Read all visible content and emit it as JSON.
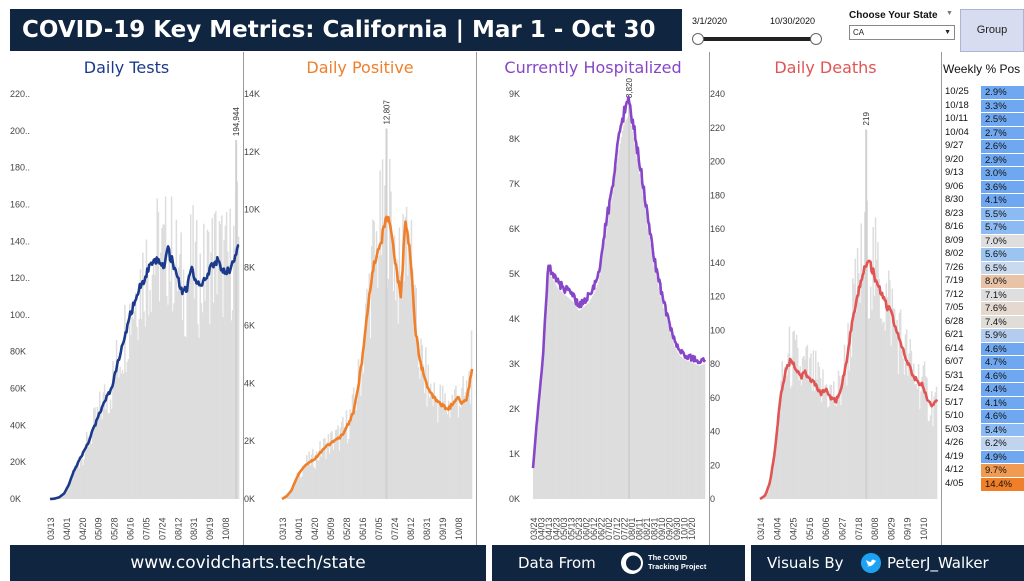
{
  "header": {
    "title": "COVID-19 Key Metrics: California  |  Mar 1  - Oct 30",
    "date_start": "3/1/2020",
    "date_end": "10/30/2020",
    "state_label": "Choose Your State",
    "state_value": "CA",
    "group_button": "Group"
  },
  "colors": {
    "navy": "#0f2540",
    "tests": "#1c3a8c",
    "positive": "#f07f2a",
    "hospitalized": "#8746c8",
    "deaths": "#e05454",
    "bars": "#dddddd"
  },
  "chart_data": [
    {
      "type": "line",
      "title": "Daily Tests",
      "color": "#1c3a8c",
      "y_ticks": [
        "0K",
        "20K",
        "40K",
        "60K",
        "80K",
        "100..",
        "120..",
        "140..",
        "160..",
        "180..",
        "200..",
        "220.."
      ],
      "y_max": 220000,
      "x_ticks": [
        "03/13",
        "04/01",
        "04/20",
        "05/09",
        "05/28",
        "06/16",
        "07/05",
        "07/24",
        "08/12",
        "08/31",
        "09/19",
        "10/08"
      ],
      "annotation": "194,944",
      "peak_value": 194944,
      "rolling_avg": [
        0,
        200,
        1000,
        3000,
        8000,
        15000,
        20000,
        25000,
        30000,
        37000,
        43000,
        50000,
        55000,
        60000,
        70000,
        80000,
        90000,
        100000,
        108000,
        115000,
        120000,
        125000,
        128000,
        130000,
        126000,
        135000,
        128000,
        120000,
        112000,
        115000,
        125000,
        118000,
        115000,
        120000,
        125000,
        130000,
        128000,
        122000,
        125000,
        130000,
        137000
      ]
    },
    {
      "type": "line",
      "title": "Daily Positive",
      "color": "#f07f2a",
      "y_ticks": [
        "0K",
        "2K",
        "4K",
        "6K",
        "8K",
        "10K",
        "12K",
        "14K"
      ],
      "y_max": 14000,
      "x_ticks": [
        "03/13",
        "04/01",
        "04/20",
        "05/09",
        "05/28",
        "06/16",
        "07/05",
        "07/24",
        "08/12",
        "08/31",
        "09/19",
        "10/08"
      ],
      "annotation": "12,807",
      "peak_value": 12807,
      "rolling_avg": [
        0,
        100,
        300,
        700,
        1000,
        1200,
        1300,
        1400,
        1600,
        1800,
        1900,
        2000,
        2100,
        2300,
        2600,
        3000,
        3800,
        5000,
        6500,
        7800,
        8500,
        9000,
        9800,
        9200,
        8000,
        7000,
        9700,
        8500,
        6000,
        4800,
        4200,
        3700,
        3500,
        3300,
        3200,
        3100,
        3300,
        3500,
        3300,
        3500,
        4500
      ]
    },
    {
      "type": "line",
      "title": "Currently Hospitalized",
      "color": "#8746c8",
      "y_ticks": [
        "0K",
        "1K",
        "2K",
        "3K",
        "4K",
        "5K",
        "6K",
        "7K",
        "8K",
        "9K"
      ],
      "y_max": 9000,
      "x_ticks": [
        "03/24",
        "04/03",
        "04/13",
        "04/23",
        "05/03",
        "05/13",
        "05/23",
        "06/02",
        "06/12",
        "06/22",
        "07/02",
        "07/12",
        "07/22",
        "08/01",
        "08/11",
        "08/21",
        "08/31",
        "09/10",
        "09/20",
        "09/30",
        "10/10",
        "10/20"
      ],
      "annotation": "8,820",
      "peak_value": 8820,
      "rolling_avg": [
        700,
        2000,
        3200,
        5200,
        5000,
        4800,
        4700,
        4600,
        4500,
        4300,
        4400,
        4500,
        4700,
        5000,
        5800,
        6500,
        7200,
        8000,
        8600,
        8800,
        8200,
        7500,
        6800,
        6000,
        5300,
        4800,
        4300,
        3900,
        3500,
        3300,
        3200,
        3150,
        3100,
        3050,
        3100
      ]
    },
    {
      "type": "line",
      "title": "Daily Deaths",
      "color": "#e05454",
      "y_ticks": [
        "0",
        "20",
        "40",
        "60",
        "80",
        "100",
        "120",
        "140",
        "160",
        "180",
        "200",
        "220",
        "240"
      ],
      "y_max": 240,
      "x_ticks": [
        "03/14",
        "04/04",
        "04/25",
        "05/16",
        "06/06",
        "06/27",
        "07/18",
        "08/08",
        "08/29",
        "09/19",
        "10/10"
      ],
      "annotation": "219",
      "peak_value": 219,
      "rolling_avg": [
        0,
        2,
        10,
        30,
        60,
        75,
        82,
        78,
        72,
        75,
        70,
        68,
        62,
        65,
        60,
        58,
        65,
        80,
        100,
        115,
        130,
        140,
        138,
        128,
        122,
        115,
        110,
        100,
        90,
        82,
        75,
        70,
        68,
        60,
        55,
        58
      ]
    }
  ],
  "weekly": {
    "title": "Weekly % Pos",
    "rows": [
      {
        "date": "10/25",
        "value": "2.9%",
        "color": "#6fa8f0"
      },
      {
        "date": "10/18",
        "value": "3.3%",
        "color": "#6fa8f0"
      },
      {
        "date": "10/11",
        "value": "2.5%",
        "color": "#6fa8f0"
      },
      {
        "date": "10/04",
        "value": "2.7%",
        "color": "#6fa8f0"
      },
      {
        "date": "9/27",
        "value": "2.6%",
        "color": "#6fa8f0"
      },
      {
        "date": "9/20",
        "value": "2.9%",
        "color": "#6fa8f0"
      },
      {
        "date": "9/13",
        "value": "3.0%",
        "color": "#6fa8f0"
      },
      {
        "date": "9/06",
        "value": "3.6%",
        "color": "#6fa8f0"
      },
      {
        "date": "8/30",
        "value": "4.1%",
        "color": "#6fa8f0"
      },
      {
        "date": "8/23",
        "value": "5.5%",
        "color": "#8cbaf2"
      },
      {
        "date": "8/16",
        "value": "5.7%",
        "color": "#8cbaf2"
      },
      {
        "date": "8/09",
        "value": "7.0%",
        "color": "#dedede"
      },
      {
        "date": "8/02",
        "value": "5.6%",
        "color": "#9cc4f0"
      },
      {
        "date": "7/26",
        "value": "6.5%",
        "color": "#c9d9ee"
      },
      {
        "date": "7/19",
        "value": "8.0%",
        "color": "#e8c3a8"
      },
      {
        "date": "7/12",
        "value": "7.1%",
        "color": "#dedede"
      },
      {
        "date": "7/05",
        "value": "7.6%",
        "color": "#e4d8cf"
      },
      {
        "date": "6/28",
        "value": "7.4%",
        "color": "#e0dcd8"
      },
      {
        "date": "6/21",
        "value": "5.9%",
        "color": "#b4cdee"
      },
      {
        "date": "6/14",
        "value": "4.6%",
        "color": "#6fa8f0"
      },
      {
        "date": "6/07",
        "value": "4.7%",
        "color": "#6fa8f0"
      },
      {
        "date": "5/31",
        "value": "4.6%",
        "color": "#6fa8f0"
      },
      {
        "date": "5/24",
        "value": "4.4%",
        "color": "#6fa8f0"
      },
      {
        "date": "5/17",
        "value": "4.1%",
        "color": "#6fa8f0"
      },
      {
        "date": "5/10",
        "value": "4.6%",
        "color": "#6fa8f0"
      },
      {
        "date": "5/03",
        "value": "5.4%",
        "color": "#8cbaf2"
      },
      {
        "date": "4/26",
        "value": "6.2%",
        "color": "#c0d4ee"
      },
      {
        "date": "4/19",
        "value": "4.9%",
        "color": "#6fa8f0"
      },
      {
        "date": "4/12",
        "value": "9.7%",
        "color": "#f09a52"
      },
      {
        "date": "4/05",
        "value": "14.4%",
        "color": "#f07f2a"
      }
    ]
  },
  "footer": {
    "url": "www.covidcharts.tech/state",
    "data_from": "Data From",
    "source_line1": "The COVID",
    "source_line2": "Tracking Project",
    "visuals_by": "Visuals By",
    "handle": "PeterJ_Walker"
  }
}
